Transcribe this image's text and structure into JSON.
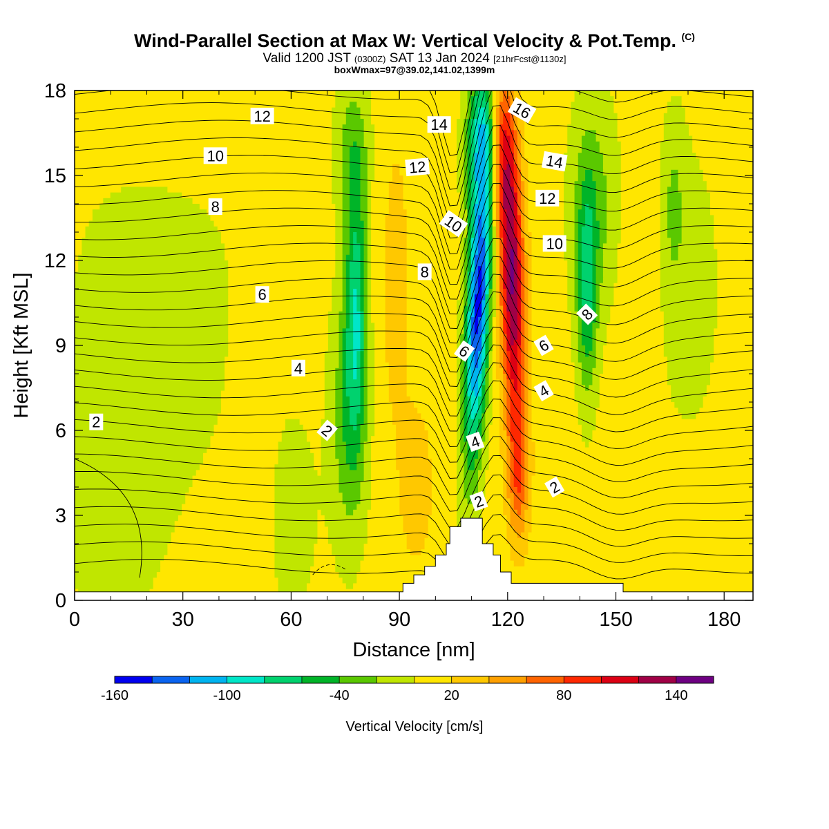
{
  "header": {
    "title": "Wind-Parallel Section at Max W: Vertical Velocity & Pot.Temp.",
    "title_mark": "(C)",
    "subtitle_a": "Valid 1200 JST",
    "subtitle_b": "(0300Z)",
    "subtitle_c": "SAT 13 Jan 2024",
    "subtitle_d": "[21hrFcst@1130z]",
    "subtitle2": "boxWmax=97@39.02,141.02,1399m"
  },
  "chart_data": {
    "type": "heatmap",
    "xlabel": "Distance [nm]",
    "ylabel": "Height [Kft MSL]",
    "xlim": [
      0,
      188
    ],
    "ylim": [
      0,
      18
    ],
    "xticks": [
      0,
      30,
      60,
      90,
      120,
      150,
      180
    ],
    "yticks": [
      0,
      3,
      6,
      9,
      12,
      15,
      18
    ],
    "colorbar": {
      "label": "Vertical Velocity [cm/s]",
      "tick_labels": [
        -160,
        -100,
        -40,
        20,
        80,
        140
      ],
      "levels": [
        -160,
        -140,
        -120,
        -100,
        -80,
        -60,
        -40,
        -20,
        0,
        20,
        40,
        60,
        80,
        100,
        120,
        140,
        160
      ],
      "colors": [
        "#0000f0",
        "#0a64f0",
        "#00b4f0",
        "#00e6c8",
        "#00d26e",
        "#00b428",
        "#5ac800",
        "#c0e600",
        "#ffe600",
        "#ffc800",
        "#ffa000",
        "#ff6400",
        "#ff2800",
        "#dc0014",
        "#a00046",
        "#6e0082"
      ]
    },
    "velocity_features": [
      {
        "x": 110,
        "y": 11,
        "value": -150
      },
      {
        "x": 108,
        "y": 14,
        "value": -120
      },
      {
        "x": 121,
        "y": 11,
        "value": 125
      },
      {
        "x": 119,
        "y": 15.5,
        "value": 95
      },
      {
        "x": 78,
        "y": 10.5,
        "value": -80
      },
      {
        "x": 76,
        "y": 8.5,
        "value": -55
      },
      {
        "x": 142,
        "y": 11,
        "value": -60
      },
      {
        "x": 143,
        "y": 13,
        "value": -30
      },
      {
        "x": 22,
        "y": 10,
        "value": -15
      },
      {
        "x": 95,
        "y": 4,
        "value": 35
      },
      {
        "x": 170,
        "y": 11,
        "value": -10
      }
    ],
    "theta_contour_labels": [
      "2",
      "4",
      "6",
      "8",
      "10",
      "12",
      "14",
      "16"
    ],
    "theta_labels": [
      {
        "x": 6,
        "y": 6.3,
        "text": "2",
        "rot": 0
      },
      {
        "x": 70,
        "y": 6.0,
        "text": "2",
        "rot": 40
      },
      {
        "x": 112,
        "y": 3.5,
        "text": "2",
        "rot": -20
      },
      {
        "x": 133,
        "y": 4.0,
        "text": "2",
        "rot": -30
      },
      {
        "x": 62,
        "y": 8.2,
        "text": "4",
        "rot": 0
      },
      {
        "x": 111,
        "y": 5.6,
        "text": "4",
        "rot": -20
      },
      {
        "x": 130,
        "y": 7.4,
        "text": "4",
        "rot": -30
      },
      {
        "x": 52,
        "y": 10.8,
        "text": "6",
        "rot": 0
      },
      {
        "x": 108,
        "y": 8.8,
        "text": "6",
        "rot": 35
      },
      {
        "x": 130,
        "y": 9.0,
        "text": "6",
        "rot": -30
      },
      {
        "x": 39,
        "y": 13.9,
        "text": "8",
        "rot": 0
      },
      {
        "x": 97,
        "y": 11.6,
        "text": "8",
        "rot": 0
      },
      {
        "x": 142,
        "y": 10.1,
        "text": "8",
        "rot": -45
      },
      {
        "x": 39,
        "y": 15.7,
        "text": "10",
        "rot": 0
      },
      {
        "x": 105,
        "y": 13.3,
        "text": "10",
        "rot": 35
      },
      {
        "x": 133,
        "y": 12.6,
        "text": "10",
        "rot": 0
      },
      {
        "x": 52,
        "y": 17.1,
        "text": "12",
        "rot": 0
      },
      {
        "x": 95,
        "y": 15.3,
        "text": "12",
        "rot": -5
      },
      {
        "x": 131,
        "y": 14.2,
        "text": "12",
        "rot": 0
      },
      {
        "x": 101,
        "y": 16.8,
        "text": "14",
        "rot": 0
      },
      {
        "x": 133,
        "y": 15.5,
        "text": "14",
        "rot": 10
      },
      {
        "x": 124,
        "y": 17.3,
        "text": "16",
        "rot": 30
      }
    ],
    "terrain": [
      [
        0,
        0.3
      ],
      [
        91,
        0.3
      ],
      [
        91,
        0.6
      ],
      [
        94,
        0.6
      ],
      [
        94,
        0.9
      ],
      [
        97,
        0.9
      ],
      [
        97,
        1.2
      ],
      [
        100,
        1.2
      ],
      [
        100,
        1.6
      ],
      [
        103,
        1.6
      ],
      [
        103,
        2.0
      ],
      [
        104,
        2.0
      ],
      [
        104,
        2.6
      ],
      [
        107,
        2.6
      ],
      [
        107,
        2.9
      ],
      [
        113,
        2.9
      ],
      [
        113,
        2.0
      ],
      [
        116,
        2.0
      ],
      [
        116,
        1.6
      ],
      [
        118,
        1.6
      ],
      [
        118,
        1.0
      ],
      [
        121,
        1.0
      ],
      [
        121,
        0.6
      ],
      [
        152,
        0.6
      ],
      [
        152,
        0.3
      ],
      [
        188,
        0.3
      ]
    ]
  }
}
